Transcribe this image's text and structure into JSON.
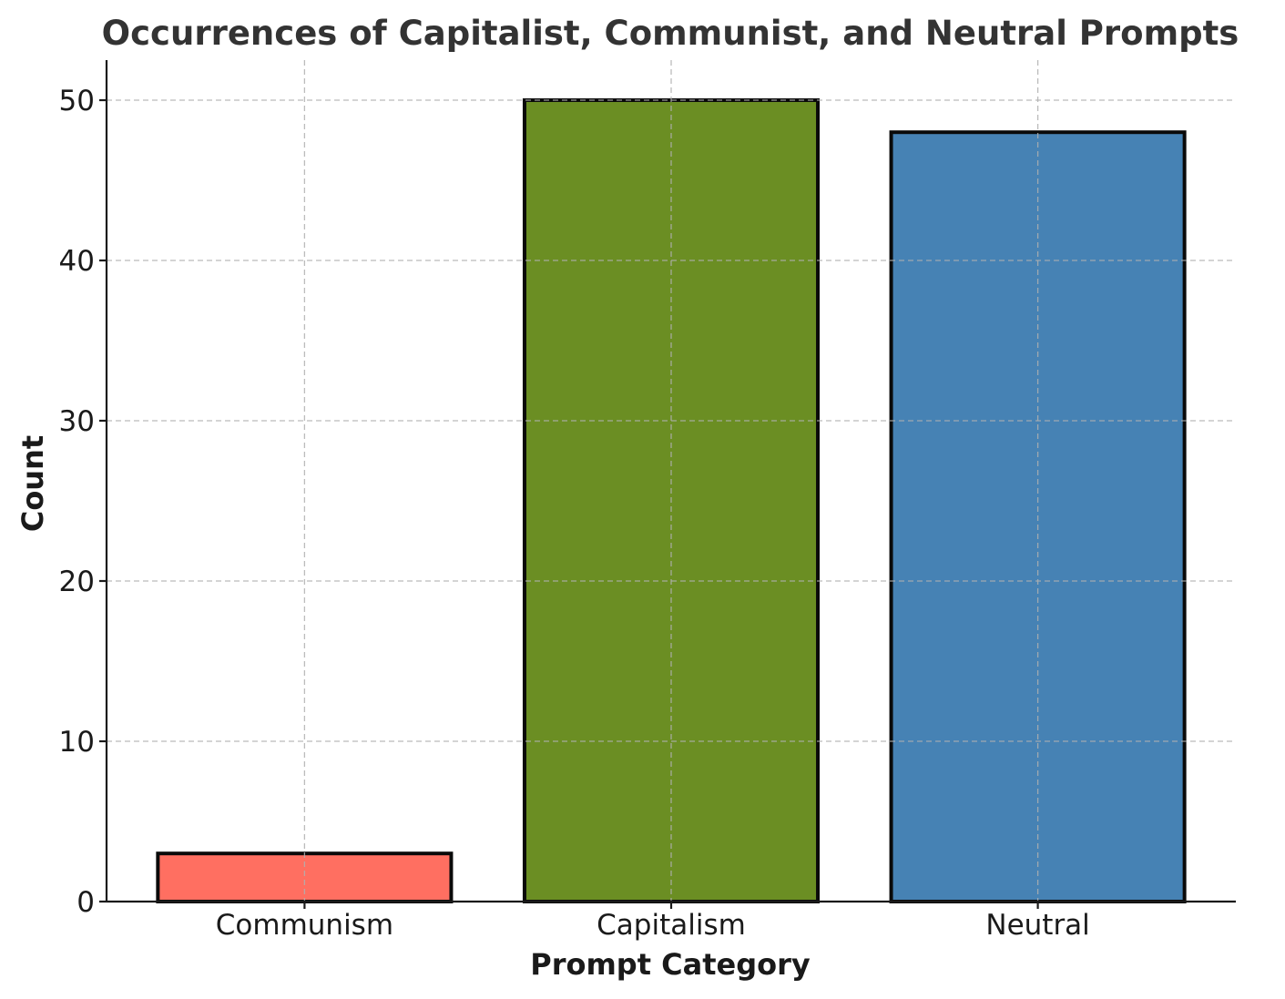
{
  "chart_data": {
    "type": "bar",
    "title": "Occurrences of Capitalist, Communist, and Neutral Prompts",
    "xlabel": "Prompt Category",
    "ylabel": "Count",
    "categories": [
      "Communism",
      "Capitalism",
      "Neutral"
    ],
    "values": [
      3,
      50,
      48
    ],
    "colors": [
      "#ff6f61",
      "#6b8e23",
      "#4682b4"
    ],
    "edge_color": "#000000",
    "ylim": [
      0,
      52.5
    ],
    "yticks": [
      0,
      10,
      20,
      30,
      40,
      50
    ],
    "grid": true
  }
}
